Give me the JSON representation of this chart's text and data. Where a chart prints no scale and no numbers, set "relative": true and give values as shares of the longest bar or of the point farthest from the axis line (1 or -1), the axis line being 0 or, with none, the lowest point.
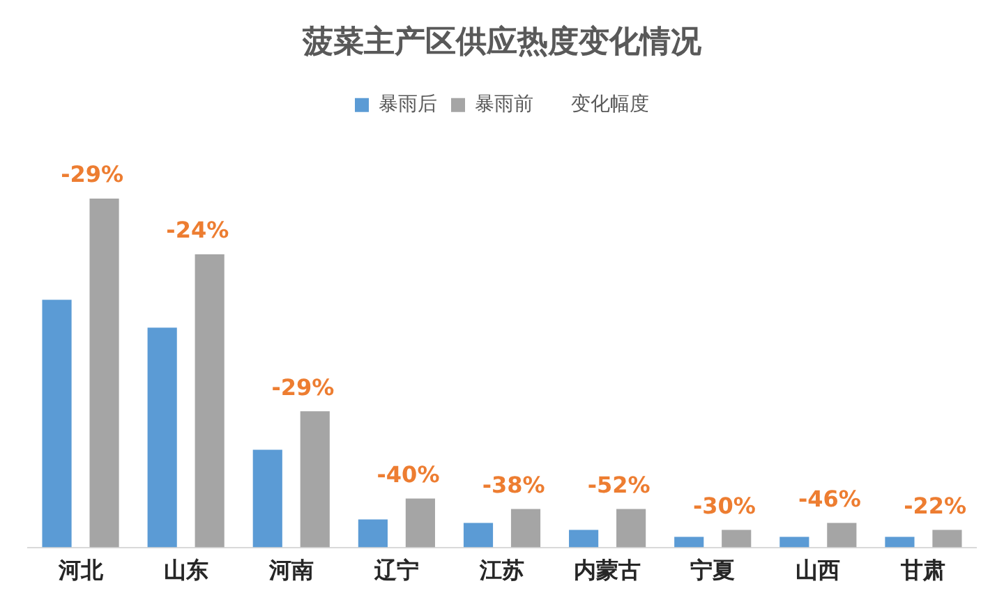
{
  "chart_data": {
    "type": "bar",
    "title": "菠菜主产区供应热度变化情况",
    "relative": true,
    "legend": "top",
    "grid": false,
    "categories": [
      "河北",
      "山东",
      "河南",
      "辽宁",
      "江苏",
      "内蒙古",
      "宁夏",
      "山西",
      "甘肃"
    ],
    "series": [
      {
        "name": "暴雨后",
        "color": "#5b9bd5",
        "values": [
          0.71,
          0.63,
          0.28,
          0.08,
          0.07,
          0.05,
          0.03,
          0.03,
          0.03
        ]
      },
      {
        "name": "暴雨前",
        "color": "#a5a5a5",
        "values": [
          1,
          0.84,
          0.39,
          0.14,
          0.11,
          0.11,
          0.05,
          0.07,
          0.05
        ]
      },
      {
        "name": "变化幅度",
        "type": "line",
        "values": [
          null,
          null,
          null,
          null,
          null,
          null,
          null,
          null,
          null
        ]
      }
    ],
    "annotations": [
      "-29%",
      "-24%",
      "-29%",
      "-40%",
      "-38%",
      "-52%",
      "-30%",
      "-46%",
      "-22%"
    ]
  }
}
